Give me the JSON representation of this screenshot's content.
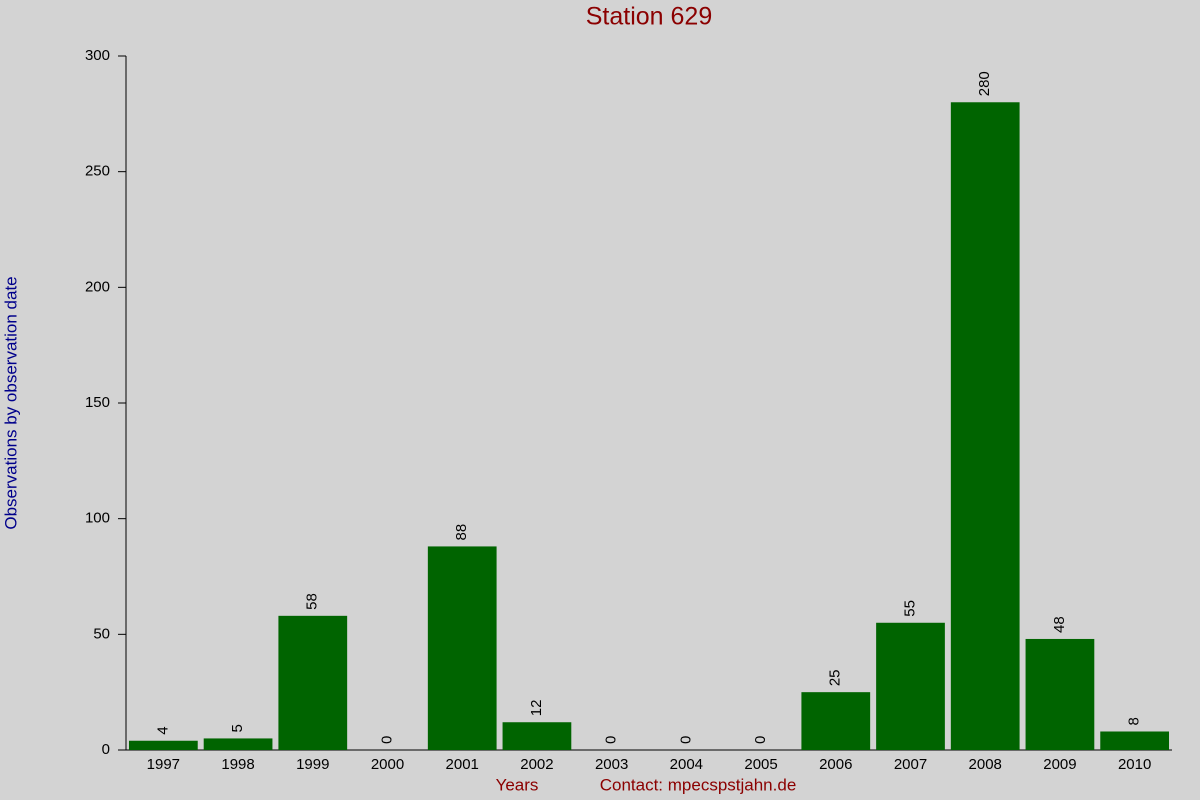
{
  "chart_data": {
    "type": "bar",
    "title": "Station 629",
    "x_label": "Years",
    "y_label": "Observations by observation date",
    "annotation": "Contact: mpecspstjahn.de",
    "categories": [
      "1997",
      "1998",
      "1999",
      "2000",
      "2001",
      "2002",
      "2003",
      "2004",
      "2005",
      "2006",
      "2007",
      "2008",
      "2009",
      "2010"
    ],
    "values": [
      4,
      5,
      58,
      0,
      88,
      12,
      0,
      0,
      0,
      25,
      55,
      280,
      48,
      8
    ],
    "color": "#006400",
    "ylim": [
      0,
      300
    ],
    "yticks": [
      0,
      50,
      100,
      150,
      200,
      250,
      300
    ],
    "grid": false
  }
}
